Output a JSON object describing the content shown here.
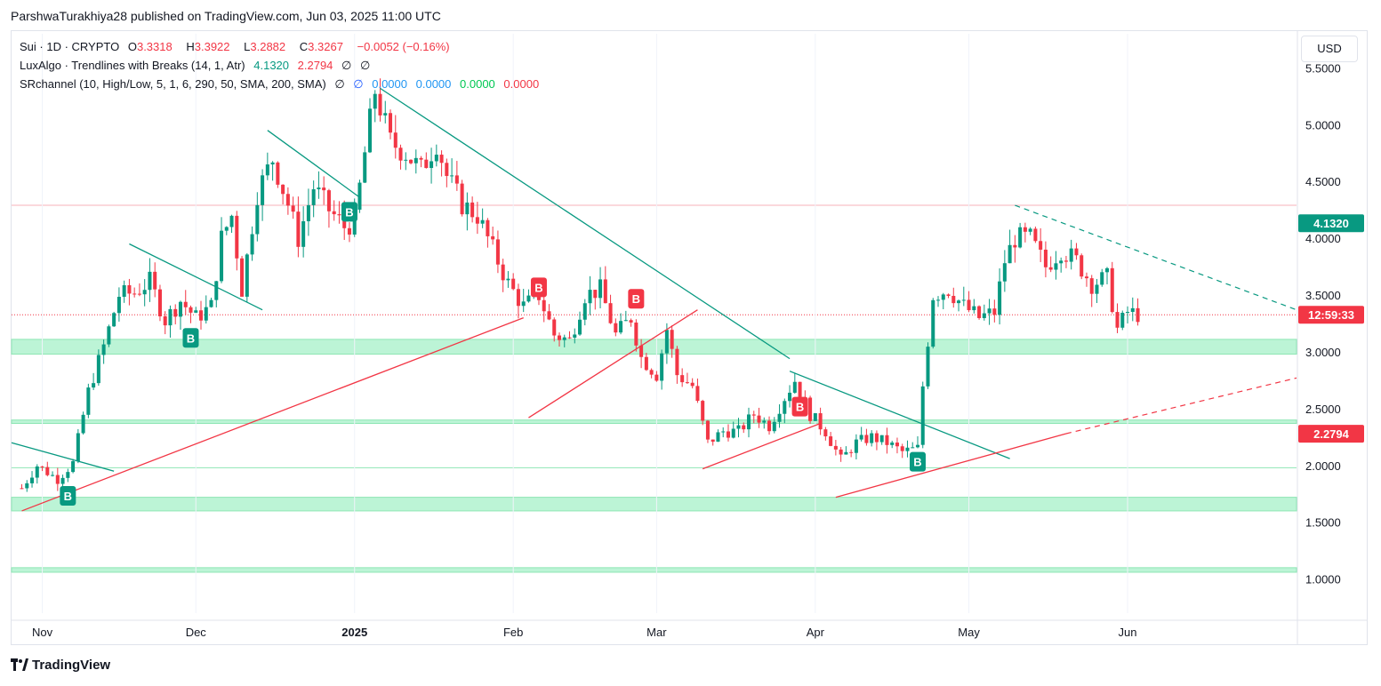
{
  "attribution": "ParshwaTurakhiya28 published on TradingView.com, Jun 03, 2025 11:00 UTC",
  "legend": {
    "symbol": "Sui · 1D · CRYPTO",
    "o_label": "O",
    "o_value": "3.3318",
    "h_label": "H",
    "h_value": "3.3922",
    "l_label": "L",
    "l_value": "3.2882",
    "c_label": "C",
    "c_value": "3.3267",
    "change": "−0.0052 (−0.16%)",
    "indicator1_name": "LuxAlgo · Trendlines with Breaks (14, 1, Atr)",
    "indicator1_v1": "4.1320",
    "indicator1_v2": "2.2794",
    "indicator1_v3": "∅",
    "indicator1_v4": "∅",
    "indicator2_name": "SRchannel (10, High/Low, 5, 1, 6, 290, 50, SMA, 200, SMA)",
    "indicator2_v1": "∅",
    "indicator2_v2": "∅",
    "indicator2_v3": "0.0000",
    "indicator2_v4": "0.0000",
    "indicator2_v5": "0.0000",
    "indicator2_v6": "0.0000"
  },
  "currency": "USD",
  "footer": {
    "brand": "TradingView"
  },
  "colors": {
    "up": "#089981",
    "down": "#f23645",
    "zone": "#a5f0c8",
    "zone_line": "#8ee6b4"
  },
  "chart_data": {
    "type": "candlestick",
    "symbol": "SUI",
    "interval": "1D",
    "x_ticks": [
      {
        "label": "Nov",
        "date": "2024-11-01",
        "bold": false
      },
      {
        "label": "Dec",
        "date": "2024-12-01",
        "bold": false
      },
      {
        "label": "2025",
        "date": "2025-01-01",
        "bold": true
      },
      {
        "label": "Feb",
        "date": "2025-02-01",
        "bold": false
      },
      {
        "label": "Mar",
        "date": "2025-03-01",
        "bold": false
      },
      {
        "label": "Apr",
        "date": "2025-04-01",
        "bold": false
      },
      {
        "label": "May",
        "date": "2025-05-01",
        "bold": false
      },
      {
        "label": "Jun",
        "date": "2025-06-01",
        "bold": false
      }
    ],
    "y_ticks": [
      "1.0000",
      "1.5000",
      "2.0000",
      "2.5000",
      "3.0000",
      "3.5000",
      "4.0000",
      "4.5000",
      "5.0000",
      "5.5000"
    ],
    "y_range": [
      0.7,
      5.8
    ],
    "x_range": [
      "2024-10-26",
      "2025-07-04"
    ],
    "close_series": [
      [
        "2024-10-28",
        1.8
      ],
      [
        "2024-10-31",
        2.0
      ],
      [
        "2024-11-04",
        1.88
      ],
      [
        "2024-11-07",
        2.02
      ],
      [
        "2024-11-10",
        2.65
      ],
      [
        "2024-11-13",
        3.05
      ],
      [
        "2024-11-16",
        3.5
      ],
      [
        "2024-11-19",
        3.52
      ],
      [
        "2024-11-22",
        3.62
      ],
      [
        "2024-11-25",
        3.28
      ],
      [
        "2024-11-28",
        3.45
      ],
      [
        "2024-12-01",
        3.3
      ],
      [
        "2024-12-04",
        3.4
      ],
      [
        "2024-12-06",
        4.0
      ],
      [
        "2024-12-08",
        4.2
      ],
      [
        "2024-12-10",
        3.55
      ],
      [
        "2024-12-13",
        4.4
      ],
      [
        "2024-12-16",
        4.7
      ],
      [
        "2024-12-19",
        4.3
      ],
      [
        "2024-12-21",
        4.0
      ],
      [
        "2024-12-24",
        4.45
      ],
      [
        "2024-12-27",
        4.25
      ],
      [
        "2024-12-30",
        4.1
      ],
      [
        "2025-01-01",
        4.15
      ],
      [
        "2025-01-03",
        4.75
      ],
      [
        "2025-01-05",
        5.3
      ],
      [
        "2025-01-08",
        4.85
      ],
      [
        "2025-01-11",
        4.75
      ],
      [
        "2025-01-14",
        4.6
      ],
      [
        "2025-01-17",
        4.85
      ],
      [
        "2025-01-19",
        4.55
      ],
      [
        "2025-01-22",
        4.3
      ],
      [
        "2025-01-25",
        4.2
      ],
      [
        "2025-01-28",
        3.9
      ],
      [
        "2025-01-31",
        3.6
      ],
      [
        "2025-02-03",
        3.4
      ],
      [
        "2025-02-06",
        3.5
      ],
      [
        "2025-02-09",
        3.15
      ],
      [
        "2025-02-12",
        3.1
      ],
      [
        "2025-02-15",
        3.5
      ],
      [
        "2025-02-18",
        3.55
      ],
      [
        "2025-02-21",
        3.15
      ],
      [
        "2025-02-24",
        3.3
      ],
      [
        "2025-02-26",
        2.95
      ],
      [
        "2025-03-01",
        2.8
      ],
      [
        "2025-03-03",
        3.2
      ],
      [
        "2025-03-05",
        2.8
      ],
      [
        "2025-03-08",
        2.7
      ],
      [
        "2025-03-11",
        2.2
      ],
      [
        "2025-03-14",
        2.3
      ],
      [
        "2025-03-17",
        2.3
      ],
      [
        "2025-03-20",
        2.45
      ],
      [
        "2025-03-23",
        2.35
      ],
      [
        "2025-03-26",
        2.6
      ],
      [
        "2025-03-28",
        2.75
      ],
      [
        "2025-03-31",
        2.45
      ],
      [
        "2025-04-03",
        2.3
      ],
      [
        "2025-04-06",
        2.05
      ],
      [
        "2025-04-09",
        2.2
      ],
      [
        "2025-04-12",
        2.25
      ],
      [
        "2025-04-15",
        2.2
      ],
      [
        "2025-04-18",
        2.12
      ],
      [
        "2025-04-21",
        2.15
      ],
      [
        "2025-04-22",
        2.7
      ],
      [
        "2025-04-24",
        3.5
      ],
      [
        "2025-04-27",
        3.55
      ],
      [
        "2025-04-30",
        3.4
      ],
      [
        "2025-05-03",
        3.3
      ],
      [
        "2025-05-06",
        3.35
      ],
      [
        "2025-05-08",
        3.8
      ],
      [
        "2025-05-10",
        4.0
      ],
      [
        "2025-05-13",
        4.0
      ],
      [
        "2025-05-16",
        3.75
      ],
      [
        "2025-05-19",
        3.9
      ],
      [
        "2025-05-22",
        3.8
      ],
      [
        "2025-05-25",
        3.6
      ],
      [
        "2025-05-28",
        3.65
      ],
      [
        "2025-05-30",
        3.2
      ],
      [
        "2025-06-01",
        3.35
      ],
      [
        "2025-06-03",
        3.33
      ]
    ],
    "support_resistance_zones": [
      {
        "from": 2.98,
        "to": 3.11
      },
      {
        "from": 2.37,
        "to": 2.4
      },
      {
        "from": 1.6,
        "to": 1.72
      },
      {
        "from": 1.06,
        "to": 1.1
      }
    ],
    "zone_lines": [
      1.98
    ],
    "resistance_line": 4.29,
    "current_price": 3.3267,
    "price_labels": [
      {
        "value": 4.132,
        "text": "4.1320",
        "color": "#089981"
      },
      {
        "value": 3.3267,
        "text": "12:59:33",
        "color": "#f23645"
      },
      {
        "value": 2.2794,
        "text": "2.2794",
        "color": "#f23645"
      }
    ],
    "trendlines_down": [
      [
        [
          "2024-10-26",
          2.2
        ],
        [
          "2024-11-15",
          1.95
        ]
      ],
      [
        [
          "2024-11-18",
          3.95
        ],
        [
          "2024-12-14",
          3.37
        ]
      ],
      [
        [
          "2024-12-15",
          4.95
        ],
        [
          "2025-01-02",
          4.36
        ]
      ],
      [
        [
          "2025-01-06",
          5.32
        ],
        [
          "2025-03-27",
          2.94
        ]
      ],
      [
        [
          "2025-03-27",
          2.83
        ],
        [
          "2025-05-09",
          2.06
        ]
      ]
    ],
    "trendlines_up": [
      [
        [
          "2024-10-28",
          1.6
        ],
        [
          "2025-02-03",
          3.3
        ]
      ],
      [
        [
          "2025-02-04",
          2.42
        ],
        [
          "2025-03-09",
          3.37
        ]
      ],
      [
        [
          "2025-03-10",
          1.97
        ],
        [
          "2025-04-02",
          2.37
        ]
      ],
      [
        [
          "2025-04-05",
          1.72
        ],
        [
          "2025-05-20",
          2.28
        ]
      ]
    ],
    "trendlines_dashed": [
      {
        "points": [
          [
            "2025-05-10",
            4.29
          ],
          [
            "2025-07-04",
            3.37
          ]
        ],
        "color": "#089981"
      },
      {
        "points": [
          [
            "2025-05-20",
            2.28
          ],
          [
            "2025-07-04",
            2.77
          ]
        ],
        "color": "#f23645"
      }
    ],
    "break_markers": [
      {
        "date": "2024-11-06",
        "value": 1.85,
        "label": "B",
        "side": "below",
        "color": "#089981"
      },
      {
        "date": "2024-11-30",
        "value": 3.24,
        "label": "B",
        "side": "below",
        "color": "#089981"
      },
      {
        "date": "2024-12-31",
        "value": 4.35,
        "label": "B",
        "side": "below",
        "color": "#089981"
      },
      {
        "date": "2025-02-06",
        "value": 3.45,
        "label": "B",
        "side": "above",
        "color": "#f23645"
      },
      {
        "date": "2025-02-25",
        "value": 3.35,
        "label": "B",
        "side": "above",
        "color": "#f23645"
      },
      {
        "date": "2025-03-29",
        "value": 2.4,
        "label": "B",
        "side": "above",
        "color": "#f23645"
      },
      {
        "date": "2025-04-21",
        "value": 2.15,
        "label": "B",
        "side": "below",
        "color": "#089981"
      }
    ]
  }
}
